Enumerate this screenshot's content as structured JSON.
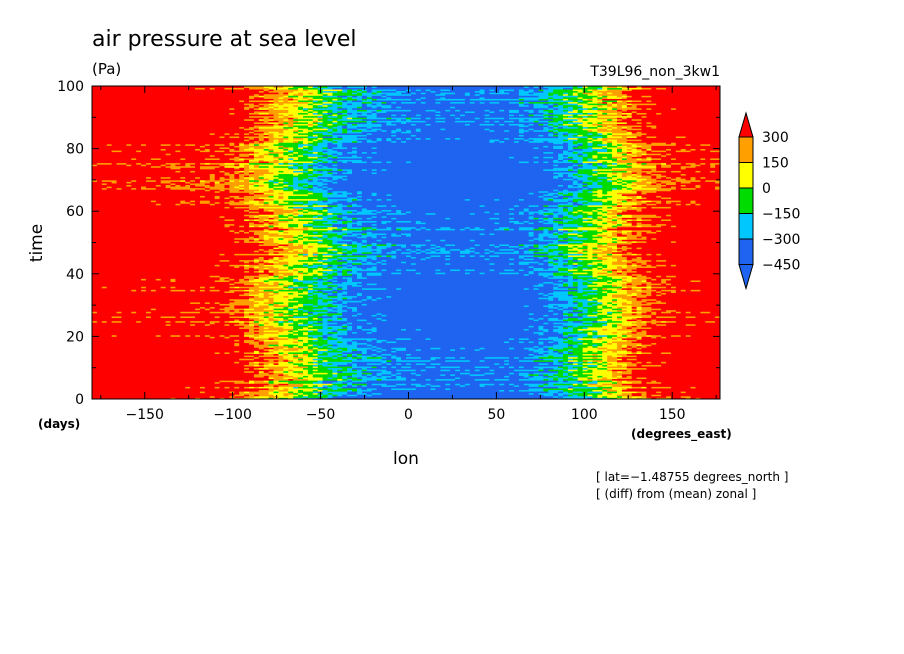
{
  "chart_data": {
    "type": "heatmap",
    "title": "air pressure at sea level",
    "units": "(Pa)",
    "run_label": "T39L96_non_3kw1",
    "xlabel": "lon",
    "ylabel": "time",
    "x_unit": "(degrees_east)",
    "y_unit": "(days)",
    "xlim": [
      -180,
      177.1875
    ],
    "ylim": [
      0,
      100
    ],
    "x_ticks": [
      -150,
      -100,
      -50,
      0,
      50,
      100,
      150
    ],
    "y_ticks": [
      0,
      20,
      40,
      60,
      80,
      100
    ],
    "x_tick_labels": [
      "−150",
      "−100",
      "−50",
      "0",
      "50",
      "100",
      "150"
    ],
    "y_tick_labels": [
      "0",
      "20",
      "40",
      "60",
      "80",
      "100"
    ],
    "notes": [
      "[ lat=−1.48755 degrees_north ]",
      "[ (diff) from (mean) zonal ]"
    ],
    "colorbar": {
      "levels": [
        -450,
        -300,
        -150,
        0,
        150,
        300
      ],
      "labels": [
        "300",
        "150",
        "0",
        "−150",
        "−300",
        "−450"
      ],
      "colors": [
        "#1e64f0",
        "#00c8ff",
        "#00dc00",
        "#ffff00",
        "#ffa000",
        "#ff0000"
      ],
      "extend": "both"
    },
    "anomaly_profile": {
      "lon": [
        -180,
        -150,
        -120,
        -100,
        -90,
        -80,
        -70,
        -60,
        -50,
        -40,
        -30,
        -20,
        -10,
        0,
        10,
        20,
        30,
        40,
        50,
        60,
        70,
        80,
        90,
        100,
        110,
        120,
        130,
        140,
        150,
        160,
        170,
        177
      ],
      "value": [
        520,
        500,
        450,
        380,
        250,
        150,
        60,
        -30,
        -150,
        -250,
        -320,
        -370,
        -420,
        -450,
        -470,
        -480,
        -485,
        -480,
        -470,
        -440,
        -380,
        -300,
        -200,
        -90,
        20,
        150,
        280,
        380,
        440,
        480,
        500,
        510
      ]
    }
  }
}
